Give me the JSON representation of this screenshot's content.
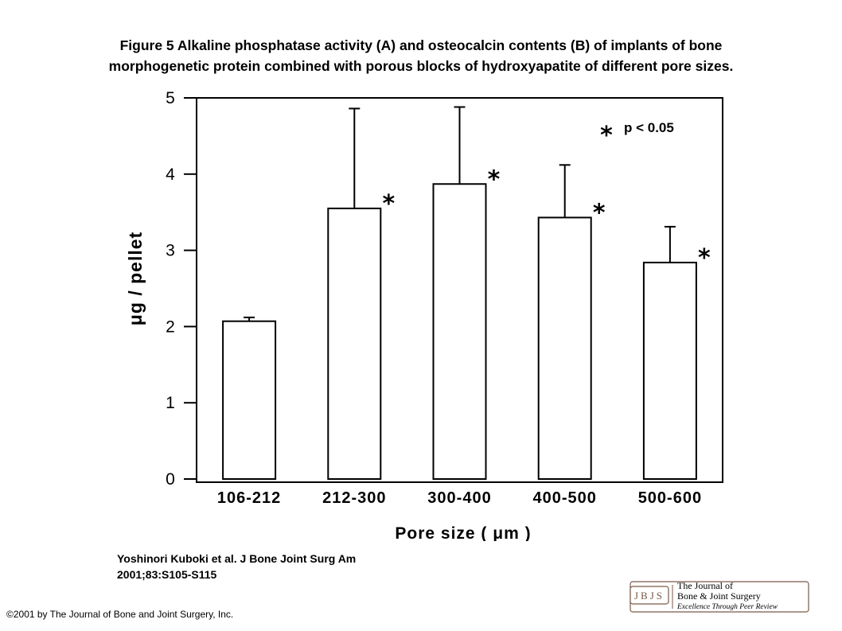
{
  "title_lines": [
    "Figure 5 Alkaline phosphatase activity (A) and osteocalcin contents (B) of implants of bone",
    "morphogenetic protein combined with porous blocks of hydroxyapatite of different pore sizes."
  ],
  "citation_lines": [
    "Yoshinori Kuboki et al. J Bone Joint Surg Am",
    "2001;83:S105-S115"
  ],
  "copyright": "©2001 by The Journal of Bone and Joint Surgery, Inc.",
  "logo": {
    "abbr": "JBJS",
    "line1": "The Journal of",
    "line2": "Bone & Joint Surgery",
    "tagline": "Excellence Through Peer Review"
  },
  "chart_data": {
    "type": "bar",
    "categories": [
      "106-212",
      "212-300",
      "300-400",
      "400-500",
      "500-600"
    ],
    "values": [
      2.07,
      3.55,
      3.87,
      3.43,
      2.84
    ],
    "error_upper": [
      2.12,
      4.86,
      4.88,
      4.12,
      3.31
    ],
    "significant": [
      false,
      true,
      true,
      true,
      true
    ],
    "significance_marker": "*",
    "legend_text": "p < 0.05",
    "legend_placement": "top-right",
    "xlabel": "Pore size ( μm )",
    "ylabel": "μg / pellet",
    "ylim": [
      0,
      5
    ],
    "yticks": [
      0,
      1,
      2,
      3,
      4,
      5
    ],
    "grid": false
  }
}
